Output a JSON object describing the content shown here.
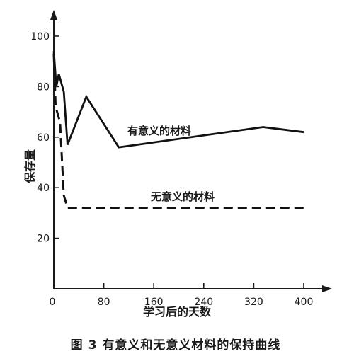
{
  "chart_data": {
    "type": "line",
    "title": "",
    "caption": "图 3   有意义和无意义材料的保持曲线",
    "xlabel": "学习后的天数",
    "ylabel": "保存量",
    "xlim": [
      0,
      400
    ],
    "ylim": [
      0,
      100
    ],
    "x_ticks": [
      0,
      80,
      160,
      240,
      320,
      400
    ],
    "y_ticks": [
      20,
      40,
      60,
      80,
      100
    ],
    "x_tick_labels": [
      "0",
      "80",
      "160",
      "240",
      "320",
      "400"
    ],
    "y_tick_labels": [
      "20",
      "40",
      "60",
      "80",
      "100"
    ],
    "grid": false,
    "legend": "none",
    "series": [
      {
        "name": "有意义的材料",
        "style": "solid",
        "x": [
          0,
          4,
          8,
          16,
          22,
          52,
          104,
          335,
          400
        ],
        "y": [
          94,
          80,
          85,
          78,
          57,
          76,
          56,
          64,
          62
        ]
      },
      {
        "name": "无意义的材料",
        "style": "dashed",
        "x": [
          0,
          3,
          10,
          16,
          22,
          40,
          104,
          200,
          335,
          400
        ],
        "y": [
          93,
          72,
          66,
          37,
          32,
          32,
          32,
          32,
          32,
          32
        ]
      }
    ]
  }
}
